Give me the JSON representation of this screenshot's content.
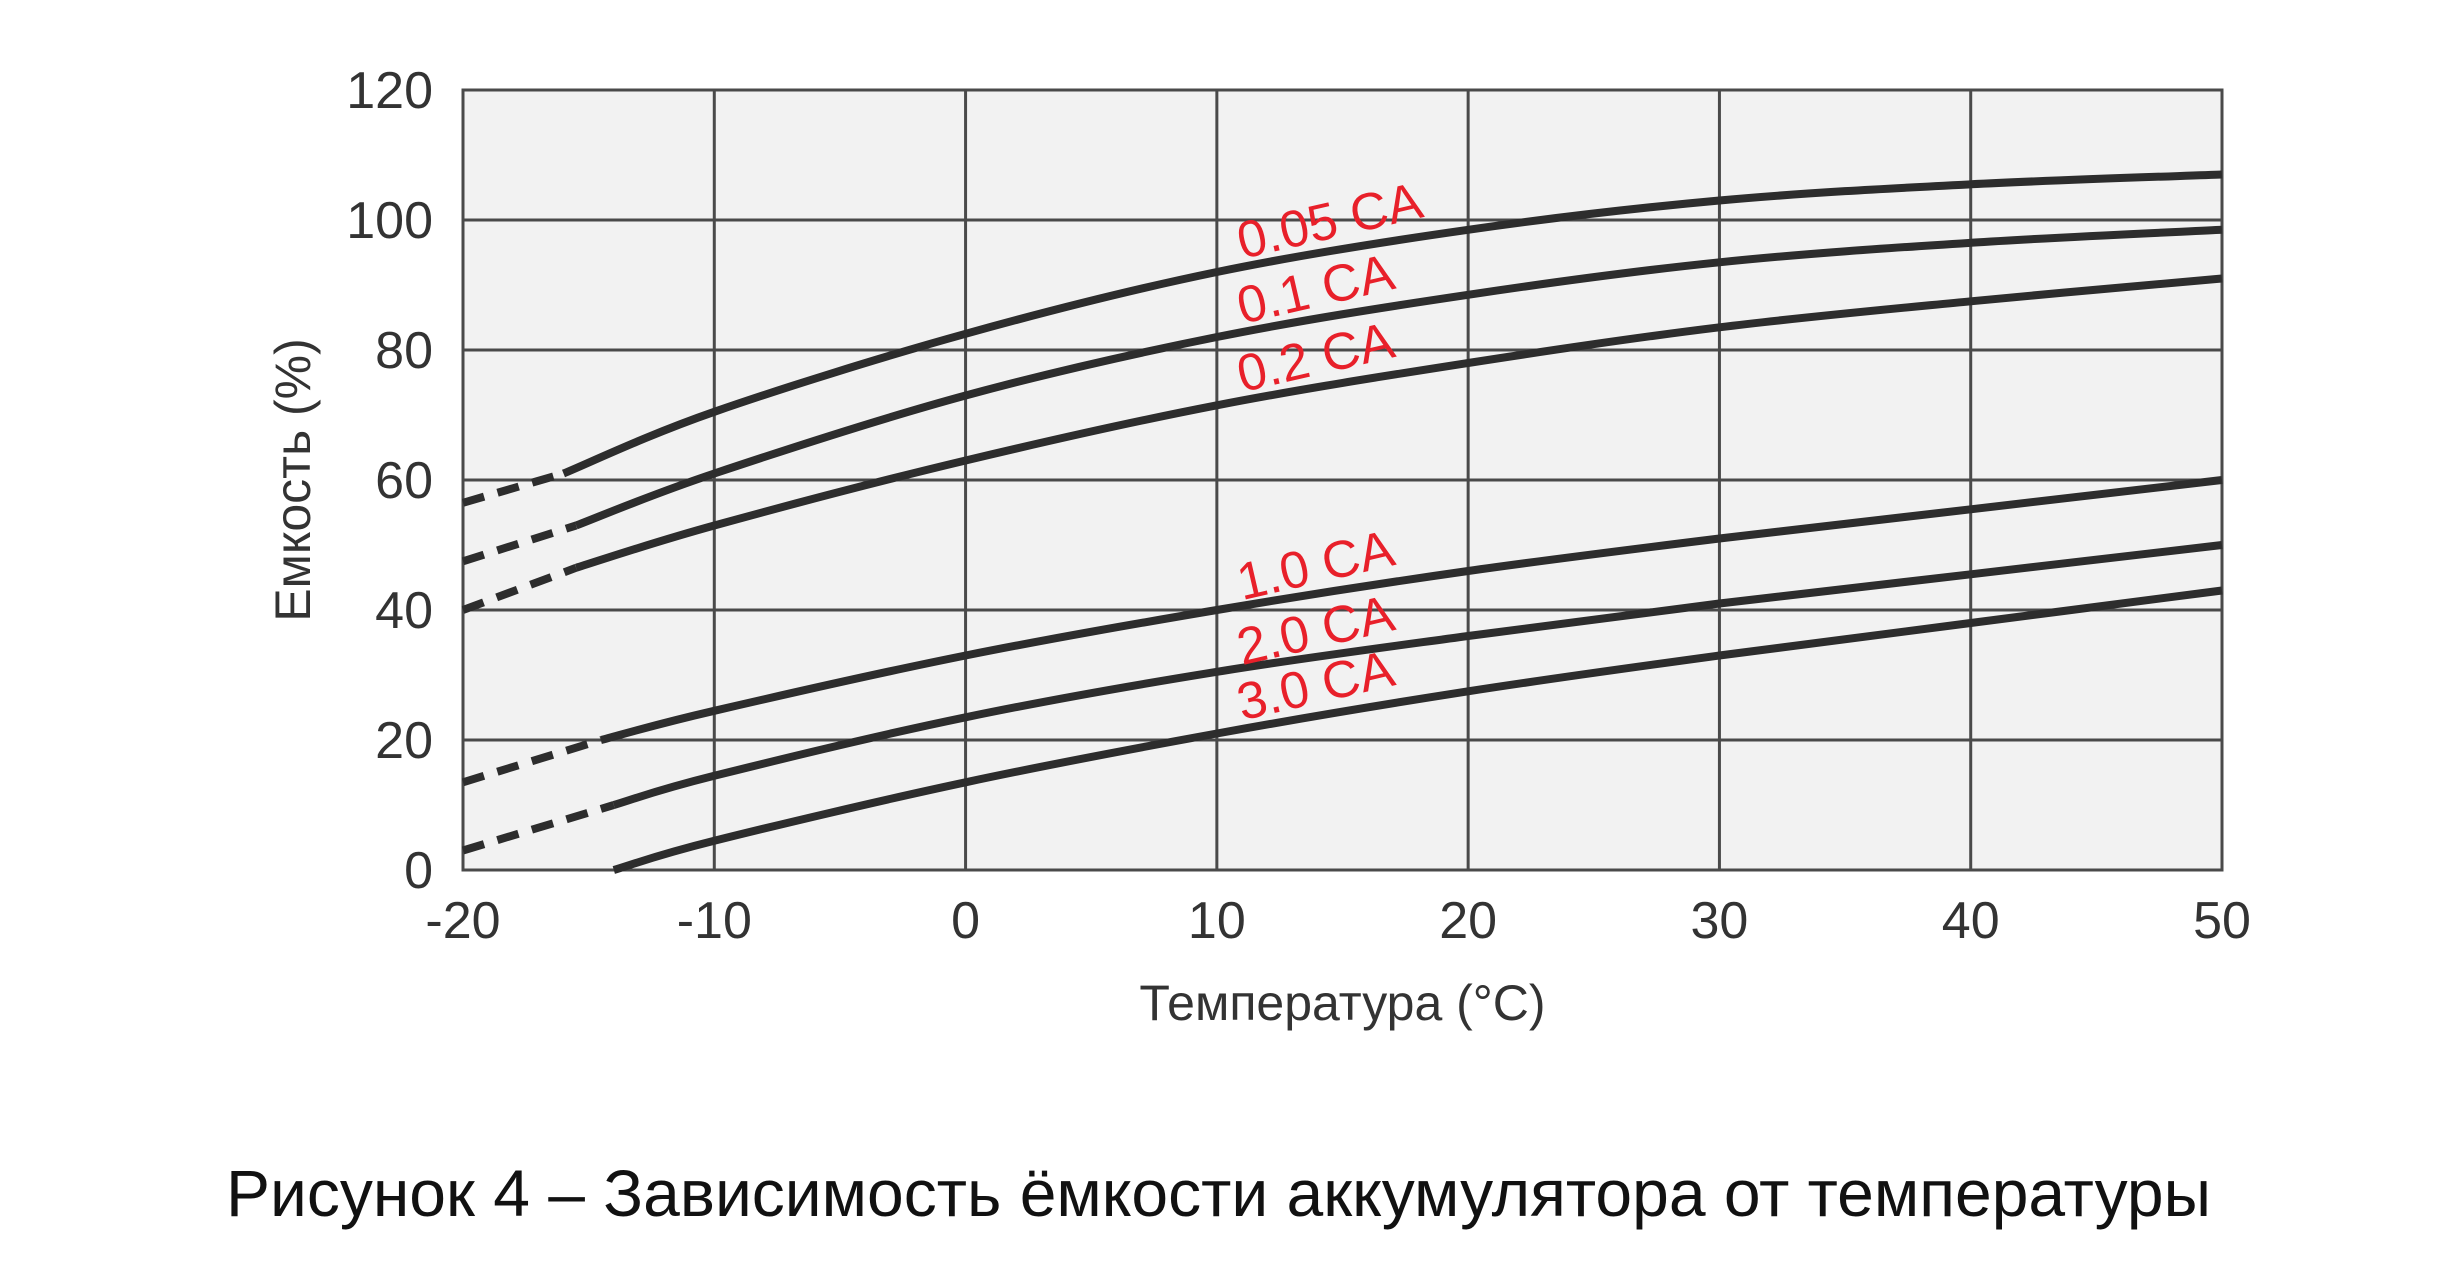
{
  "chart_data": {
    "type": "line",
    "title": "",
    "xlabel": "Температура (°C)",
    "ylabel": "Емкость (%)",
    "xlim": [
      -20,
      50
    ],
    "ylim": [
      0,
      120
    ],
    "x_ticks": [
      -20,
      -10,
      0,
      10,
      20,
      30,
      40,
      50
    ],
    "y_ticks": [
      0,
      20,
      40,
      60,
      80,
      100,
      120
    ],
    "grid": true,
    "legend": "none (series labeled inline)",
    "colors": {
      "plot_background": "#f2f2f2",
      "grid": "#4a4a4a",
      "curve": "#2d2d2d",
      "label": "#e8202a"
    },
    "series": [
      {
        "name": "0.05 CA",
        "dashed": [
          [
            -20,
            56.5
          ],
          [
            -16,
            61
          ]
        ],
        "points": [
          [
            -16,
            61
          ],
          [
            -10,
            70.5
          ],
          [
            0,
            82.5
          ],
          [
            10,
            92
          ],
          [
            20,
            98.5
          ],
          [
            30,
            103
          ],
          [
            40,
            105.5
          ],
          [
            50,
            107
          ]
        ]
      },
      {
        "name": "0.1 CA",
        "dashed": [
          [
            -20,
            47.5
          ],
          [
            -15.5,
            53
          ]
        ],
        "points": [
          [
            -15.5,
            53
          ],
          [
            -10,
            61
          ],
          [
            0,
            73
          ],
          [
            10,
            82
          ],
          [
            20,
            88.5
          ],
          [
            30,
            93.5
          ],
          [
            40,
            96.5
          ],
          [
            50,
            98.5
          ]
        ]
      },
      {
        "name": "0.2 CA",
        "dashed": [
          [
            -20,
            40
          ],
          [
            -15.5,
            46.5
          ]
        ],
        "points": [
          [
            -15.5,
            46.5
          ],
          [
            -10,
            53
          ],
          [
            0,
            63
          ],
          [
            10,
            71.5
          ],
          [
            20,
            78
          ],
          [
            30,
            83.5
          ],
          [
            40,
            87.5
          ],
          [
            50,
            91
          ]
        ]
      },
      {
        "name": "1.0 CA",
        "dashed": [
          [
            -20,
            13.5
          ],
          [
            -14.5,
            20
          ]
        ],
        "points": [
          [
            -14.5,
            20
          ],
          [
            -10,
            24.5
          ],
          [
            0,
            33
          ],
          [
            10,
            40
          ],
          [
            20,
            46
          ],
          [
            30,
            51
          ],
          [
            40,
            55.5
          ],
          [
            50,
            60
          ]
        ]
      },
      {
        "name": "2.0 CA",
        "dashed": [
          [
            -20,
            3
          ],
          [
            -14,
            10
          ]
        ],
        "points": [
          [
            -14,
            10
          ],
          [
            -10,
            14.5
          ],
          [
            0,
            23.5
          ],
          [
            10,
            30.5
          ],
          [
            20,
            36
          ],
          [
            30,
            41
          ],
          [
            40,
            45.5
          ],
          [
            50,
            50
          ]
        ]
      },
      {
        "name": "3.0 CA",
        "dashed": [],
        "points": [
          [
            -14,
            0
          ],
          [
            -10,
            4.5
          ],
          [
            0,
            13.5
          ],
          [
            10,
            21
          ],
          [
            20,
            27.5
          ],
          [
            30,
            33
          ],
          [
            40,
            38
          ],
          [
            50,
            43
          ]
        ]
      }
    ],
    "label_anchors": [
      {
        "series": "0.05 CA",
        "x": 11,
        "y": 94
      },
      {
        "series": "0.1 CA",
        "x": 11,
        "y": 84
      },
      {
        "series": "0.2 CA",
        "x": 11,
        "y": 73.5
      },
      {
        "series": "1.0 CA",
        "x": 11,
        "y": 41.5
      },
      {
        "series": "2.0 CA",
        "x": 11,
        "y": 31.5
      },
      {
        "series": "3.0 CA",
        "x": 11,
        "y": 23
      }
    ]
  },
  "caption": "Рисунок 4 – Зависимость ёмкости аккумулятора от температуры"
}
